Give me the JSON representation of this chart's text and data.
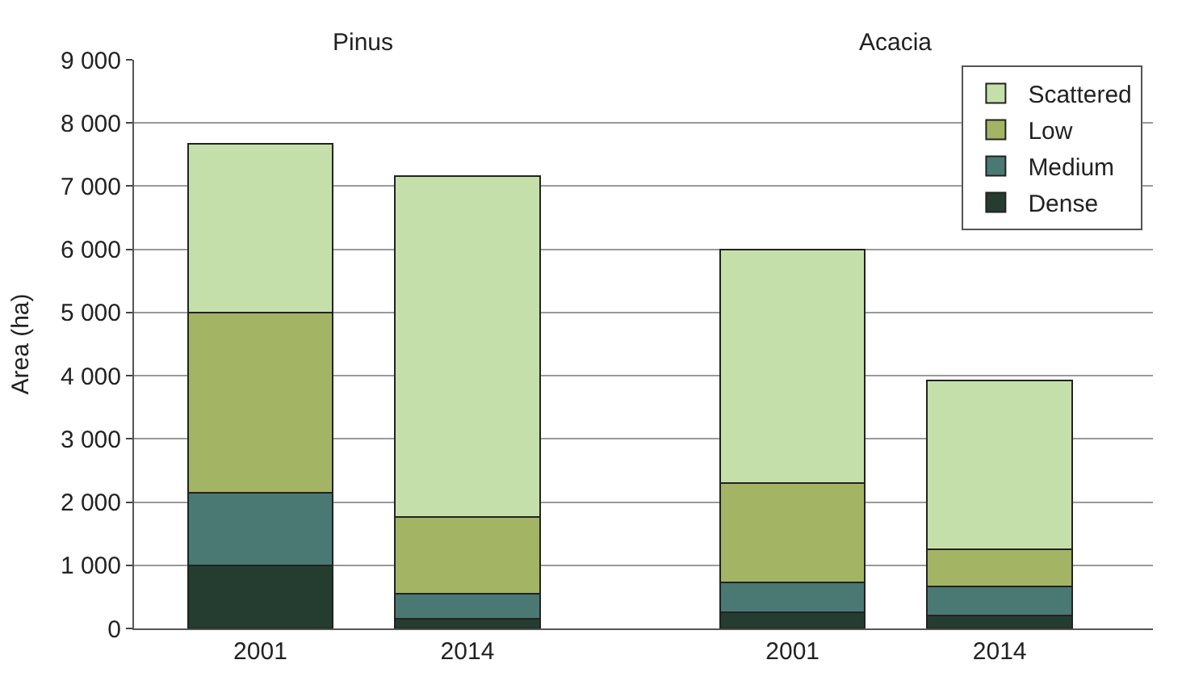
{
  "chart_data": {
    "type": "bar",
    "stacked": true,
    "ylabel": "Area (ha)",
    "categories": [
      "2001",
      "2014",
      "2001",
      "2014"
    ],
    "series": [
      {
        "name": "Dense",
        "color": "#253d30",
        "values": [
          1000,
          150,
          250,
          200
        ]
      },
      {
        "name": "Medium",
        "color": "#4a7873",
        "values": [
          1150,
          400,
          480,
          470
        ]
      },
      {
        "name": "Low",
        "color": "#a3b465",
        "values": [
          2850,
          1210,
          1570,
          580
        ]
      },
      {
        "name": "Scattered",
        "color": "#c5dfab",
        "values": [
          2670,
          5400,
          3700,
          2680
        ]
      }
    ],
    "annotations": [
      "Pinus",
      "Acacia"
    ],
    "ylim": [
      0,
      9000
    ],
    "yticks": [
      {
        "value": 0,
        "label": "0"
      },
      {
        "value": 1000,
        "label": "1 000"
      },
      {
        "value": 2000,
        "label": "2 000"
      },
      {
        "value": 3000,
        "label": "3 000"
      },
      {
        "value": 4000,
        "label": "4 000"
      },
      {
        "value": 5000,
        "label": "5 000"
      },
      {
        "value": 6000,
        "label": "6 000"
      },
      {
        "value": 7000,
        "label": "7 000"
      },
      {
        "value": 8000,
        "label": "8 000"
      },
      {
        "value": 9000,
        "label": "9 000"
      }
    ],
    "grid": "y",
    "legend": "top right"
  }
}
